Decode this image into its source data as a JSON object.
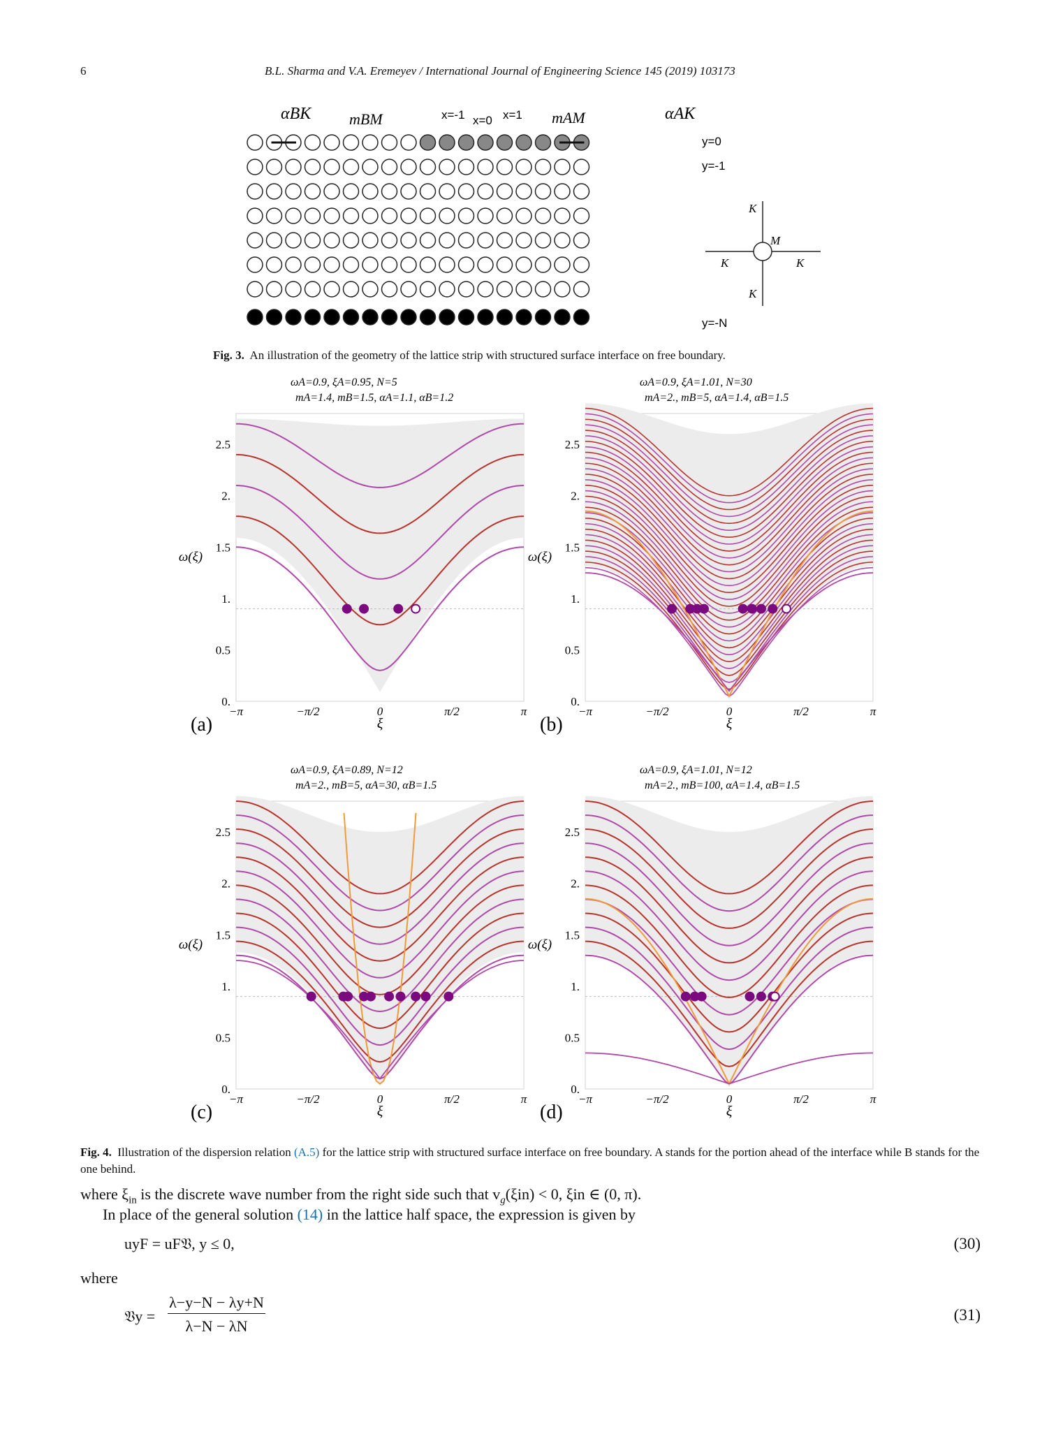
{
  "header": {
    "page_number": "6",
    "journal": "B.L. Sharma and V.A. Eremeyev / International Journal of Engineering Science 145 (2019) 103173"
  },
  "fig3": {
    "top_labels": {
      "alphaBK": "αBK",
      "mBM": "mBM",
      "xm1": "x=-1",
      "x0": "x=0",
      "x1": "x=1",
      "mAM": "mAM",
      "alphaAK": "αAK"
    },
    "row_labels": [
      "y=0",
      "y=-1",
      "y=-N"
    ],
    "inset": {
      "k_top": "K",
      "m": "M",
      "k_left": "K",
      "k_right": "K",
      "k_bottom": "K"
    },
    "caption_label": "Fig. 3.",
    "caption_text": "An illustration of the geometry of the lattice strip with structured surface interface on free boundary."
  },
  "fig4": {
    "panels": [
      {
        "id": "a",
        "label": "(a)",
        "line1": "ωA=0.9, ξA=0.95, N=5",
        "line2": "mA=1.4, mB=1.5, αA=1.1, αB=1.2"
      },
      {
        "id": "b",
        "label": "(b)",
        "line1": "ωA=0.9, ξA=1.01, N=30",
        "line2": "mA=2., mB=5, αA=1.4, αB=1.5"
      },
      {
        "id": "c",
        "label": "(c)",
        "line1": "ωA=0.9, ξA=0.89, N=12",
        "line2": "mA=2., mB=5, αA=30, αB=1.5"
      },
      {
        "id": "d",
        "label": "(d)",
        "line1": "ωA=0.9, ξA=1.01, N=12",
        "line2": "mA=2., mB=100, αA=1.4, αB=1.5"
      }
    ],
    "ylabel": "ω(ξ)",
    "xlabel": "ξ",
    "yticks": [
      "0.",
      "0.5",
      "1.",
      "1.5",
      "2.",
      "2.5"
    ],
    "xticks": [
      "−π",
      "−π/2",
      "0",
      "π/2",
      "π"
    ],
    "caption_label": "Fig. 4.",
    "caption_pre": "Illustration of the dispersion relation",
    "caption_link": "(A.5)",
    "caption_post": "for the lattice strip with structured surface interface on free boundary. A stands for the portion ahead of the interface while B stands for the one behind."
  },
  "chart_data": [
    {
      "type": "line",
      "title": "ωA=0.9, ξA=0.95, N=5 / mA=1.4, mB=1.5, αA=1.1, αB=1.2",
      "xlabel": "ξ",
      "ylabel": "ω(ξ)",
      "xlim": [
        -3.1416,
        3.1416
      ],
      "ylim": [
        0,
        2.8
      ],
      "series": [
        {
          "values_at_xi0": [
            0.3,
            0.82,
            1.28,
            1.72,
            2.08
          ],
          "values_at_pi": [
            1.5,
            2.0,
            2.3,
            2.55,
            2.7
          ]
        }
      ],
      "marked_points": {
        "omega": 0.9,
        "xi": [
          -0.72,
          -0.35,
          0.4,
          0.78
        ]
      }
    },
    {
      "type": "line",
      "title": "ωA=0.9, ξA=1.01, N=30 / mA=2., mB=5, αA=1.4, αB=1.5",
      "xlabel": "ξ",
      "ylabel": "ω(ξ)",
      "xlim": [
        -3.1416,
        3.1416
      ],
      "ylim": [
        0,
        2.8
      ],
      "series": [
        {
          "curves": 30,
          "min_at_xi0": 0.05,
          "max_at_xi0": 2.0,
          "max_at_pi": 2.85
        }
      ],
      "marked_points": {
        "omega": 0.9,
        "xi": [
          -1.25,
          -0.85,
          -0.7,
          -0.55,
          0.3,
          0.5,
          0.7,
          0.95,
          1.25
        ]
      }
    },
    {
      "type": "line",
      "title": "ωA=0.9, ξA=0.89, N=12 / mA=2., mB=5, αA=30, αB=1.5",
      "xlabel": "ξ",
      "ylabel": "ω(ξ)",
      "xlim": [
        -3.1416,
        3.1416
      ],
      "ylim": [
        0,
        2.8
      ],
      "series": [
        {
          "curves": 12,
          "min_at_xi0": 0.1,
          "max_at_xi0": 1.9,
          "max_at_pi": 2.8
        }
      ],
      "marked_points": {
        "omega": 0.9,
        "xi": [
          -1.5,
          -0.8,
          -0.7,
          -0.35,
          -0.2,
          0.2,
          0.45,
          0.78,
          1.0,
          1.5
        ]
      }
    },
    {
      "type": "line",
      "title": "ωA=0.9, ξA=1.01, N=12 / mA=2., mB=100, αA=1.4, αB=1.5",
      "xlabel": "ξ",
      "ylabel": "ω(ξ)",
      "xlim": [
        -3.1416,
        3.1416
      ],
      "ylim": [
        0,
        2.8
      ],
      "series": [
        {
          "curves": 12,
          "min_at_xi0": 0.05,
          "max_at_xi0": 1.9,
          "max_at_pi": 2.8
        }
      ],
      "marked_points": {
        "omega": 0.9,
        "xi": [
          -0.95,
          -0.75,
          -0.6,
          0.45,
          0.7,
          0.95,
          1.0
        ]
      }
    }
  ],
  "text": {
    "line1_pre": "where ξ",
    "line1_sub": "in",
    "line1_post": " is the discrete wave number from the right side such that v",
    "line1_tail": "(ξin) < 0,  ξin ∈ (0, π).",
    "line2_pre": "In place of the general solution",
    "line2_link": "(14)",
    "line2_post": "in the lattice half space, the expression is given by",
    "eq30": "uyF = uF𝔙,    y ≤ 0,",
    "eq30_num": "(30)",
    "where": "where",
    "eq31_lhs": "𝔙y =",
    "eq31_num": "λ−y−N − λy+N",
    "eq31_den": "λ−N − λN",
    "eq31_num_label": "(31)"
  },
  "colors": {
    "purple": "#7a0a7e",
    "magenta": "#b048a8",
    "red": "#b8322c",
    "orange": "#f09a3a",
    "band": "#ececec",
    "link": "#1a6fb0"
  }
}
